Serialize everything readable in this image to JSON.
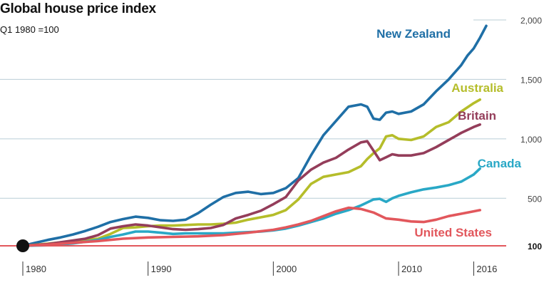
{
  "chart_data": {
    "type": "line",
    "title": "Global house price index",
    "subtitle": "Q1 1980 =100",
    "xlabel": "",
    "ylabel": "",
    "xlim": [
      1980,
      2017
    ],
    "ylim": [
      100,
      2000
    ],
    "y_ticks": [
      "2,000",
      "1,500",
      "1,000",
      "500",
      "100"
    ],
    "y_tick_values": [
      2000,
      1500,
      1000,
      500,
      100
    ],
    "x_ticks": [
      "1980",
      "1990",
      "2000",
      "2010",
      "2016"
    ],
    "x_tick_values": [
      1980,
      1990,
      2000,
      2010,
      2016
    ],
    "grid": true,
    "legend": "inline labels at line ends",
    "start_marker": {
      "x": 1980,
      "y": 100
    },
    "series": [
      {
        "name": "New Zealand",
        "color": "#1f6fa6",
        "x": [
          1980,
          1981,
          1982,
          1983,
          1984,
          1985,
          1986,
          1987,
          1988,
          1989,
          1990,
          1991,
          1992,
          1993,
          1994,
          1995,
          1996,
          1997,
          1998,
          1999,
          2000,
          2001,
          2002,
          2003,
          2004,
          2005,
          2006,
          2007,
          2007.5,
          2008,
          2008.5,
          2009,
          2009.5,
          2010,
          2011,
          2012,
          2013,
          2014,
          2015,
          2015.5,
          2016,
          2016.5,
          2017
        ],
        "y": [
          100,
          125,
          150,
          170,
          195,
          225,
          260,
          300,
          325,
          345,
          335,
          315,
          310,
          320,
          375,
          445,
          510,
          545,
          555,
          535,
          545,
          585,
          670,
          860,
          1030,
          1150,
          1270,
          1290,
          1270,
          1170,
          1160,
          1220,
          1230,
          1210,
          1230,
          1290,
          1400,
          1500,
          1620,
          1700,
          1760,
          1850,
          1950
        ]
      },
      {
        "name": "Australia",
        "color": "#b5bd2a",
        "x": [
          1980,
          1982,
          1984,
          1986,
          1987,
          1988,
          1989,
          1990,
          1991,
          1992,
          1993,
          1994,
          1995,
          1996,
          1997,
          1998,
          1999,
          2000,
          2001,
          2002,
          2003,
          2004,
          2005,
          2006,
          2007,
          2007.5,
          2008,
          2008.5,
          2009,
          2009.5,
          2010,
          2011,
          2012,
          2013,
          2014,
          2015,
          2016,
          2016.5
        ],
        "y": [
          100,
          118,
          140,
          160,
          200,
          250,
          255,
          265,
          270,
          270,
          275,
          280,
          280,
          285,
          295,
          320,
          340,
          360,
          400,
          490,
          620,
          680,
          700,
          720,
          770,
          830,
          880,
          920,
          1020,
          1030,
          1000,
          990,
          1020,
          1100,
          1140,
          1230,
          1300,
          1330
        ]
      },
      {
        "name": "Britain",
        "color": "#943d5a",
        "x": [
          1980,
          1982,
          1984,
          1985,
          1986,
          1987,
          1988,
          1989,
          1990,
          1991,
          1992,
          1993,
          1994,
          1995,
          1996,
          1997,
          1998,
          1999,
          2000,
          2001,
          2002,
          2003,
          2004,
          2005,
          2006,
          2007,
          2007.5,
          2008,
          2008.5,
          2009,
          2009.5,
          2010,
          2011,
          2012,
          2013,
          2014,
          2015,
          2016,
          2016.5
        ],
        "y": [
          100,
          115,
          145,
          160,
          190,
          245,
          265,
          280,
          270,
          255,
          240,
          235,
          240,
          250,
          275,
          330,
          360,
          395,
          450,
          510,
          650,
          740,
          800,
          840,
          910,
          970,
          980,
          900,
          820,
          845,
          870,
          860,
          860,
          880,
          930,
          990,
          1050,
          1100,
          1120
        ]
      },
      {
        "name": "Canada",
        "color": "#29a8c6",
        "x": [
          1980,
          1982,
          1984,
          1986,
          1987,
          1988,
          1989,
          1990,
          1991,
          1992,
          1993,
          1994,
          1995,
          1996,
          1997,
          1998,
          1999,
          2000,
          2001,
          2002,
          2003,
          2004,
          2005,
          2006,
          2007,
          2008,
          2008.5,
          2009,
          2009.5,
          2010,
          2011,
          2012,
          2013,
          2014,
          2015,
          2016,
          2016.5
        ],
        "y": [
          100,
          105,
          120,
          150,
          175,
          195,
          220,
          220,
          210,
          200,
          205,
          205,
          205,
          205,
          210,
          215,
          220,
          230,
          245,
          270,
          300,
          330,
          370,
          400,
          440,
          490,
          495,
          470,
          500,
          520,
          550,
          575,
          590,
          610,
          640,
          700,
          750
        ]
      },
      {
        "name": "United States",
        "color": "#e2575c",
        "x": [
          1980,
          1982,
          1984,
          1986,
          1988,
          1990,
          1992,
          1994,
          1996,
          1998,
          2000,
          2001,
          2002,
          2003,
          2004,
          2005,
          2006,
          2007,
          2008,
          2009,
          2010,
          2011,
          2012,
          2013,
          2014,
          2015,
          2016,
          2016.5
        ],
        "y": [
          100,
          110,
          125,
          140,
          160,
          170,
          175,
          180,
          190,
          210,
          235,
          255,
          280,
          310,
          350,
          390,
          420,
          410,
          380,
          330,
          320,
          305,
          300,
          320,
          350,
          370,
          390,
          400
        ]
      }
    ]
  }
}
